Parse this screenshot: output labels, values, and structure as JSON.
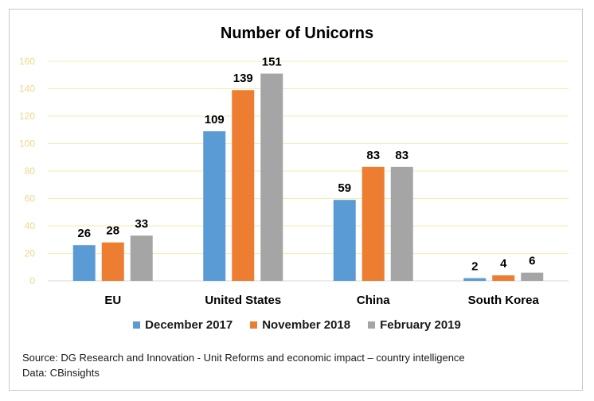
{
  "chart_data": {
    "type": "bar",
    "title": "Number of Unicorns",
    "categories": [
      "EU",
      "United States",
      "China",
      "South Korea"
    ],
    "series": [
      {
        "name": "December 2017",
        "color": "#5b9bd5",
        "values": [
          26,
          109,
          59,
          2
        ]
      },
      {
        "name": "November 2018",
        "color": "#ed7d31",
        "values": [
          28,
          139,
          83,
          4
        ]
      },
      {
        "name": "February 2019",
        "color": "#a5a5a5",
        "values": [
          33,
          151,
          83,
          6
        ]
      }
    ],
    "ylim": [
      0,
      160
    ],
    "yticks": [
      0,
      20,
      40,
      60,
      80,
      100,
      120,
      140,
      160
    ],
    "grid": true,
    "legend": "bottom",
    "xlabel": "",
    "ylabel": ""
  },
  "source_line": "Source: DG Research and Innovation - Unit Reforms and economic impact – country intelligence",
  "data_line": "Data: CBinsights"
}
